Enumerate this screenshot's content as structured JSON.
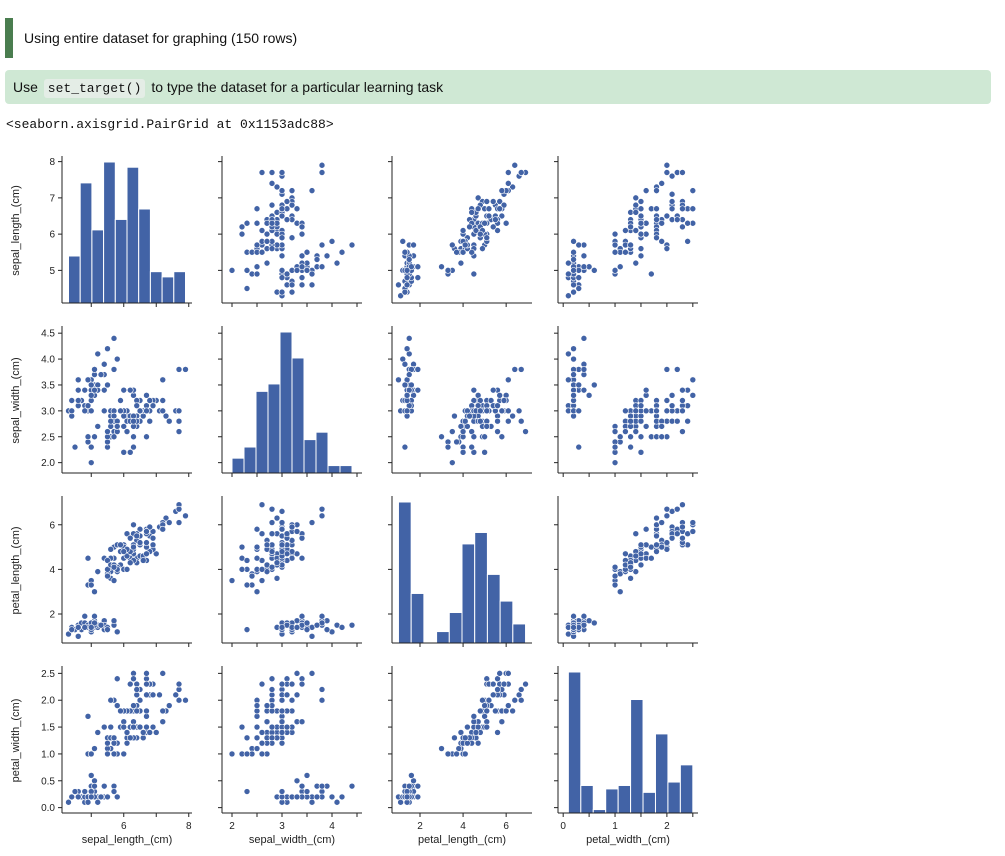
{
  "header": {
    "info_text": "Using entire dataset for graphing (150 rows)",
    "tip_prefix": "Use",
    "tip_code": "set_target()",
    "tip_suffix": "to type the dataset for a particular learning task",
    "repr_text": "<seaborn.axisgrid.PairGrid at 0x1153adc88>"
  },
  "colors": {
    "marker": "#4263a6",
    "info_bar": "#4a7d4f",
    "tip_bg": "#cfe8d4"
  },
  "chart_data": {
    "type": "scatter",
    "variables": [
      "sepal_length_(cm)",
      "sepal_width_(cm)",
      "petal_length_(cm)",
      "petal_width_(cm)"
    ],
    "axis_labels": [
      "sepal_length_(cm)",
      "sepal_width_(cm)",
      "petal_length_(cm)",
      "petal_width_(cm)"
    ],
    "ranges": [
      [
        4.1,
        8.1
      ],
      [
        1.8,
        4.6
      ],
      [
        0.7,
        7.2
      ],
      [
        -0.1,
        2.6
      ]
    ],
    "ticks": [
      {
        "values": [
          5,
          6,
          7,
          8
        ],
        "labels": [
          "5",
          "6",
          "7",
          "8"
        ]
      },
      {
        "values": [
          2.0,
          2.5,
          3.0,
          3.5,
          4.0,
          4.5
        ],
        "labels": [
          "2.0",
          "2.5",
          "3.0",
          "3.5",
          "4.0",
          "4.5"
        ]
      },
      {
        "values": [
          2,
          4,
          6
        ],
        "labels": [
          "2",
          "4",
          "6"
        ]
      },
      {
        "values": [
          0.0,
          0.5,
          1.0,
          1.5,
          2.0,
          2.5
        ],
        "labels": [
          "0.0",
          "0.5",
          "1.0",
          "1.5",
          "2.0",
          "2.5"
        ]
      }
    ],
    "bottom_ticks": [
      {
        "values": [
          6,
          8
        ],
        "labels": [
          "6",
          "8"
        ]
      },
      {
        "values": [
          2,
          3,
          4
        ],
        "labels": [
          "2",
          "3",
          "4"
        ]
      },
      {
        "values": [
          2,
          4,
          6
        ],
        "labels": [
          "2",
          "4",
          "6"
        ]
      },
      {
        "values": [
          0,
          1,
          2
        ],
        "labels": [
          "0",
          "1",
          "2"
        ]
      }
    ],
    "histograms": [
      {
        "edges": [
          4.3,
          4.66,
          5.02,
          5.38,
          5.74,
          6.1,
          6.46,
          6.82,
          7.18,
          7.54,
          7.9
        ],
        "counts": [
          9,
          23,
          14,
          27,
          16,
          26,
          18,
          6,
          5,
          6
        ]
      },
      {
        "edges": [
          2.0,
          2.24,
          2.48,
          2.72,
          2.96,
          3.2,
          3.44,
          3.68,
          3.92,
          4.16,
          4.4
        ],
        "counts": [
          4,
          7,
          22,
          24,
          38,
          31,
          9,
          11,
          2,
          2
        ]
      },
      {
        "edges": [
          1.0,
          1.59,
          2.18,
          2.77,
          3.36,
          3.95,
          4.54,
          5.13,
          5.72,
          6.31,
          6.9
        ],
        "counts": [
          37,
          13,
          0,
          3,
          8,
          26,
          29,
          18,
          11,
          5
        ]
      },
      {
        "edges": [
          0.1,
          0.34,
          0.58,
          0.82,
          1.06,
          1.3,
          1.54,
          1.78,
          2.02,
          2.26,
          2.5
        ],
        "counts": [
          41,
          8,
          1,
          7,
          8,
          33,
          6,
          23,
          9,
          14
        ]
      }
    ],
    "rows": [
      [
        5.1,
        3.5,
        1.4,
        0.2
      ],
      [
        4.9,
        3.0,
        1.4,
        0.2
      ],
      [
        4.7,
        3.2,
        1.3,
        0.2
      ],
      [
        4.6,
        3.1,
        1.5,
        0.2
      ],
      [
        5.0,
        3.6,
        1.4,
        0.2
      ],
      [
        5.4,
        3.9,
        1.7,
        0.4
      ],
      [
        4.6,
        3.4,
        1.4,
        0.3
      ],
      [
        5.0,
        3.4,
        1.5,
        0.2
      ],
      [
        4.4,
        2.9,
        1.4,
        0.2
      ],
      [
        4.9,
        3.1,
        1.5,
        0.1
      ],
      [
        5.4,
        3.7,
        1.5,
        0.2
      ],
      [
        4.8,
        3.4,
        1.6,
        0.2
      ],
      [
        4.8,
        3.0,
        1.4,
        0.1
      ],
      [
        4.3,
        3.0,
        1.1,
        0.1
      ],
      [
        5.8,
        4.0,
        1.2,
        0.2
      ],
      [
        5.7,
        4.4,
        1.5,
        0.4
      ],
      [
        5.4,
        3.9,
        1.3,
        0.4
      ],
      [
        5.1,
        3.5,
        1.4,
        0.3
      ],
      [
        5.7,
        3.8,
        1.7,
        0.3
      ],
      [
        5.1,
        3.8,
        1.5,
        0.3
      ],
      [
        5.4,
        3.4,
        1.7,
        0.2
      ],
      [
        5.1,
        3.7,
        1.5,
        0.4
      ],
      [
        4.6,
        3.6,
        1.0,
        0.2
      ],
      [
        5.1,
        3.3,
        1.7,
        0.5
      ],
      [
        4.8,
        3.4,
        1.9,
        0.2
      ],
      [
        5.0,
        3.0,
        1.6,
        0.2
      ],
      [
        5.0,
        3.4,
        1.6,
        0.4
      ],
      [
        5.2,
        3.5,
        1.5,
        0.2
      ],
      [
        5.2,
        3.4,
        1.4,
        0.2
      ],
      [
        4.7,
        3.2,
        1.6,
        0.2
      ],
      [
        4.8,
        3.1,
        1.6,
        0.2
      ],
      [
        5.4,
        3.4,
        1.5,
        0.4
      ],
      [
        5.2,
        4.1,
        1.5,
        0.1
      ],
      [
        5.5,
        4.2,
        1.4,
        0.2
      ],
      [
        4.9,
        3.1,
        1.5,
        0.2
      ],
      [
        5.0,
        3.2,
        1.2,
        0.2
      ],
      [
        5.5,
        3.5,
        1.3,
        0.2
      ],
      [
        4.9,
        3.6,
        1.4,
        0.1
      ],
      [
        4.4,
        3.0,
        1.3,
        0.2
      ],
      [
        5.1,
        3.4,
        1.5,
        0.2
      ],
      [
        5.0,
        3.5,
        1.3,
        0.3
      ],
      [
        4.5,
        2.3,
        1.3,
        0.3
      ],
      [
        4.4,
        3.2,
        1.3,
        0.2
      ],
      [
        5.0,
        3.5,
        1.6,
        0.6
      ],
      [
        5.1,
        3.8,
        1.9,
        0.4
      ],
      [
        4.8,
        3.0,
        1.4,
        0.3
      ],
      [
        5.1,
        3.8,
        1.6,
        0.2
      ],
      [
        4.6,
        3.2,
        1.4,
        0.2
      ],
      [
        5.3,
        3.7,
        1.5,
        0.2
      ],
      [
        5.0,
        3.3,
        1.4,
        0.2
      ],
      [
        7.0,
        3.2,
        4.7,
        1.4
      ],
      [
        6.4,
        3.2,
        4.5,
        1.5
      ],
      [
        6.9,
        3.1,
        4.9,
        1.5
      ],
      [
        5.5,
        2.3,
        4.0,
        1.3
      ],
      [
        6.5,
        2.8,
        4.6,
        1.5
      ],
      [
        5.7,
        2.8,
        4.5,
        1.3
      ],
      [
        6.3,
        3.3,
        4.7,
        1.6
      ],
      [
        4.9,
        2.4,
        3.3,
        1.0
      ],
      [
        6.6,
        2.9,
        4.6,
        1.3
      ],
      [
        5.2,
        2.7,
        3.9,
        1.4
      ],
      [
        5.0,
        2.0,
        3.5,
        1.0
      ],
      [
        5.9,
        3.0,
        4.2,
        1.5
      ],
      [
        6.0,
        2.2,
        4.0,
        1.0
      ],
      [
        6.1,
        2.9,
        4.7,
        1.4
      ],
      [
        5.6,
        2.9,
        3.6,
        1.3
      ],
      [
        6.7,
        3.1,
        4.4,
        1.4
      ],
      [
        5.6,
        3.0,
        4.5,
        1.5
      ],
      [
        5.8,
        2.7,
        4.1,
        1.0
      ],
      [
        6.2,
        2.2,
        4.5,
        1.5
      ],
      [
        5.6,
        2.5,
        3.9,
        1.1
      ],
      [
        5.9,
        3.2,
        4.8,
        1.8
      ],
      [
        6.1,
        2.8,
        4.0,
        1.3
      ],
      [
        6.3,
        2.5,
        4.9,
        1.5
      ],
      [
        6.1,
        2.8,
        4.7,
        1.2
      ],
      [
        6.4,
        2.9,
        4.3,
        1.3
      ],
      [
        6.6,
        3.0,
        4.4,
        1.4
      ],
      [
        6.8,
        2.8,
        4.8,
        1.4
      ],
      [
        6.7,
        3.0,
        5.0,
        1.7
      ],
      [
        6.0,
        2.9,
        4.5,
        1.5
      ],
      [
        5.7,
        2.6,
        3.5,
        1.0
      ],
      [
        5.5,
        2.4,
        3.8,
        1.1
      ],
      [
        5.5,
        2.4,
        3.7,
        1.0
      ],
      [
        5.8,
        2.7,
        3.9,
        1.2
      ],
      [
        6.0,
        2.7,
        5.1,
        1.6
      ],
      [
        5.4,
        3.0,
        4.5,
        1.5
      ],
      [
        6.0,
        3.4,
        4.5,
        1.6
      ],
      [
        6.7,
        3.1,
        4.7,
        1.5
      ],
      [
        6.3,
        2.3,
        4.4,
        1.3
      ],
      [
        5.6,
        3.0,
        4.1,
        1.3
      ],
      [
        5.5,
        2.5,
        4.0,
        1.3
      ],
      [
        5.5,
        2.6,
        4.4,
        1.2
      ],
      [
        6.1,
        3.0,
        4.6,
        1.4
      ],
      [
        5.8,
        2.6,
        4.0,
        1.2
      ],
      [
        5.0,
        2.3,
        3.3,
        1.0
      ],
      [
        5.6,
        2.7,
        4.2,
        1.3
      ],
      [
        5.7,
        3.0,
        4.2,
        1.2
      ],
      [
        5.7,
        2.9,
        4.2,
        1.3
      ],
      [
        6.2,
        2.9,
        4.3,
        1.3
      ],
      [
        5.1,
        2.5,
        3.0,
        1.1
      ],
      [
        5.7,
        2.8,
        4.1,
        1.3
      ],
      [
        6.3,
        3.3,
        6.0,
        2.5
      ],
      [
        5.8,
        2.7,
        5.1,
        1.9
      ],
      [
        7.1,
        3.0,
        5.9,
        2.1
      ],
      [
        6.3,
        2.9,
        5.6,
        1.8
      ],
      [
        6.5,
        3.0,
        5.8,
        2.2
      ],
      [
        7.6,
        3.0,
        6.6,
        2.1
      ],
      [
        4.9,
        2.5,
        4.5,
        1.7
      ],
      [
        7.3,
        2.9,
        6.3,
        1.8
      ],
      [
        6.7,
        2.5,
        5.8,
        1.8
      ],
      [
        7.2,
        3.6,
        6.1,
        2.5
      ],
      [
        6.5,
        3.2,
        5.1,
        2.0
      ],
      [
        6.4,
        2.7,
        5.3,
        1.9
      ],
      [
        6.8,
        3.0,
        5.5,
        2.1
      ],
      [
        5.7,
        2.5,
        5.0,
        2.0
      ],
      [
        5.8,
        2.8,
        5.1,
        2.4
      ],
      [
        6.4,
        3.2,
        5.3,
        2.3
      ],
      [
        6.5,
        3.0,
        5.5,
        1.8
      ],
      [
        7.7,
        3.8,
        6.7,
        2.2
      ],
      [
        7.7,
        2.6,
        6.9,
        2.3
      ],
      [
        6.0,
        2.2,
        5.0,
        1.5
      ],
      [
        6.9,
        3.2,
        5.7,
        2.3
      ],
      [
        5.6,
        2.8,
        4.9,
        2.0
      ],
      [
        7.7,
        2.8,
        6.7,
        2.0
      ],
      [
        6.3,
        2.7,
        4.9,
        1.8
      ],
      [
        6.7,
        3.3,
        5.7,
        2.1
      ],
      [
        7.2,
        3.2,
        6.0,
        1.8
      ],
      [
        6.2,
        2.8,
        4.8,
        1.8
      ],
      [
        6.1,
        3.0,
        4.9,
        1.8
      ],
      [
        6.4,
        2.8,
        5.6,
        2.1
      ],
      [
        7.2,
        3.0,
        5.8,
        1.6
      ],
      [
        7.4,
        2.8,
        6.1,
        1.9
      ],
      [
        7.9,
        3.8,
        6.4,
        2.0
      ],
      [
        6.4,
        2.8,
        5.6,
        2.2
      ],
      [
        6.3,
        2.8,
        5.1,
        1.5
      ],
      [
        6.1,
        2.6,
        5.6,
        1.4
      ],
      [
        7.7,
        3.0,
        6.1,
        2.3
      ],
      [
        6.3,
        3.4,
        5.6,
        2.4
      ],
      [
        6.4,
        3.1,
        5.5,
        1.8
      ],
      [
        6.0,
        3.0,
        4.8,
        1.8
      ],
      [
        6.9,
        3.1,
        5.4,
        2.1
      ],
      [
        6.7,
        3.1,
        5.6,
        2.4
      ],
      [
        6.9,
        3.1,
        5.1,
        2.3
      ],
      [
        5.8,
        2.7,
        5.1,
        1.9
      ],
      [
        6.8,
        3.2,
        5.9,
        2.3
      ],
      [
        6.7,
        3.3,
        5.7,
        2.5
      ],
      [
        6.7,
        3.0,
        5.2,
        2.3
      ],
      [
        6.3,
        2.5,
        5.0,
        1.9
      ],
      [
        6.5,
        3.0,
        5.2,
        2.0
      ],
      [
        6.2,
        3.4,
        5.4,
        2.3
      ],
      [
        5.9,
        3.0,
        5.1,
        1.8
      ]
    ]
  }
}
